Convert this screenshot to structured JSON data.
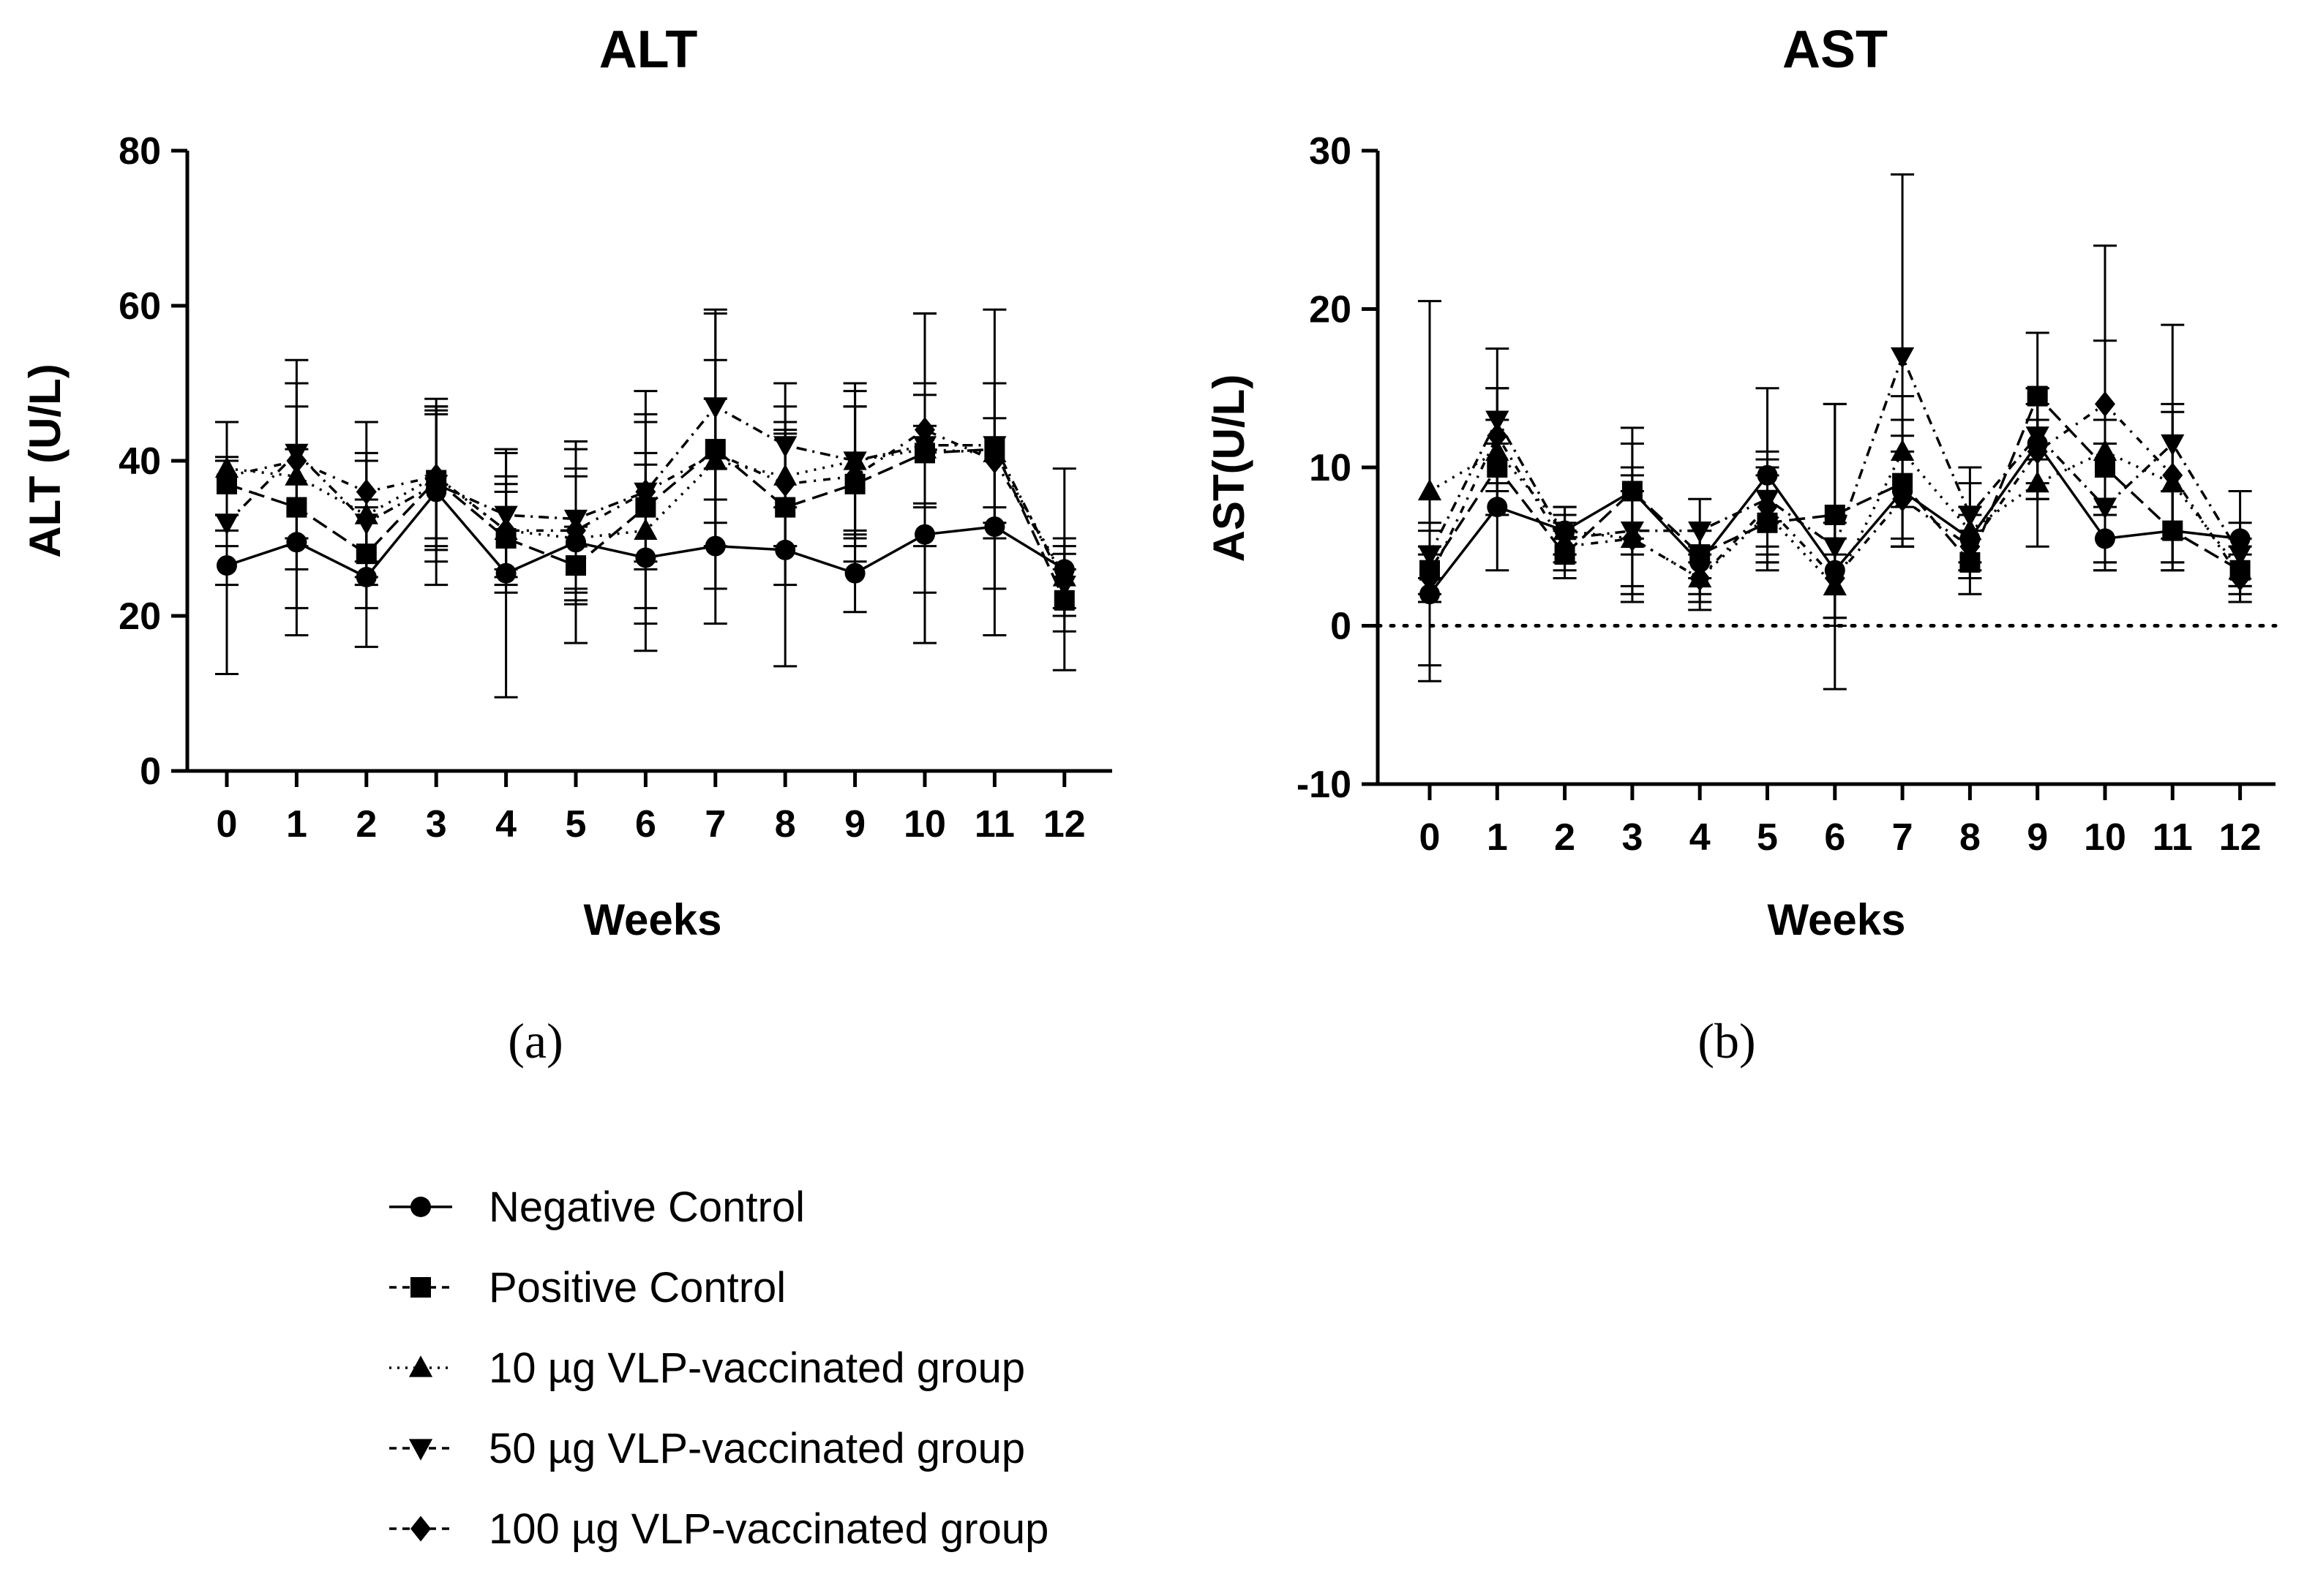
{
  "figure": {
    "panel_labels": [
      "(a)",
      "(b)"
    ],
    "legend": [
      {
        "label": "Negative Control",
        "marker": "circle",
        "dash": "solid"
      },
      {
        "label": "Positive Control",
        "marker": "square",
        "dash": "dashed"
      },
      {
        "label": "10 µg VLP-vaccinated group",
        "marker": "triangle-up",
        "dash": "dotted"
      },
      {
        "label": "50 µg VLP-vaccinated group",
        "marker": "triangle-down",
        "dash": "dashdot"
      },
      {
        "label": "100 µg VLP-vaccinated group",
        "marker": "diamond",
        "dash": "dashdot2"
      }
    ]
  },
  "chart_data": [
    {
      "id": "alt",
      "type": "line",
      "title": "ALT",
      "xlabel": "Weeks",
      "ylabel": "ALT (U/L)",
      "categories": [
        "0",
        "1",
        "2",
        "3",
        "4",
        "5",
        "6",
        "7",
        "8",
        "9",
        "10",
        "11",
        "12"
      ],
      "yticks": [
        "0",
        "20",
        "40",
        "60",
        "80"
      ],
      "ylim": [
        0,
        80
      ],
      "reference_line": null,
      "series": [
        {
          "name": "Negative Control",
          "values": [
            26.5,
            29.5,
            25,
            36,
            25.5,
            29.5,
            27.5,
            29,
            28.5,
            25.5,
            30.5,
            31.5,
            26
          ],
          "errors": [
            14,
            12,
            9,
            12,
            16,
            13,
            12,
            10,
            15,
            5,
            14,
            14,
            13
          ]
        },
        {
          "name": "Positive Control",
          "values": [
            37,
            34,
            28,
            37.5,
            30,
            26.5,
            34,
            41.5,
            34,
            37,
            41,
            41.5,
            22
          ],
          "errors": [
            8,
            13,
            7,
            9,
            7,
            5,
            15,
            18,
            10,
            10,
            18,
            18,
            4
          ]
        },
        {
          "name": "10 µg VLP-vaccinated group",
          "values": [
            39,
            38,
            33,
            38,
            31,
            30,
            31,
            40,
            38,
            40,
            41.5,
            41,
            25
          ],
          "errors": [
            6,
            12,
            8,
            9,
            5,
            8,
            10,
            8,
            9,
            9,
            7,
            9,
            4
          ]
        },
        {
          "name": "50 µg VLP-vaccinated group",
          "values": [
            32,
            41,
            32,
            37,
            33,
            32.5,
            36,
            47,
            42,
            40,
            42,
            42,
            24
          ],
          "errors": [
            8,
            12,
            8,
            10,
            8,
            9,
            10,
            12,
            8,
            10,
            8,
            8,
            4
          ]
        },
        {
          "name": "100 µg VLP-vaccinated group",
          "values": [
            38,
            40,
            36,
            38,
            31,
            31,
            36,
            41,
            37,
            38,
            44,
            40,
            25
          ],
          "errors": [
            7,
            10,
            9,
            8,
            7,
            8,
            9,
            12,
            8,
            9,
            15,
            10,
            5
          ]
        }
      ]
    },
    {
      "id": "ast",
      "type": "line",
      "title": "AST",
      "xlabel": "Weeks",
      "ylabel": "AST(U/L)",
      "categories": [
        "0",
        "1",
        "2",
        "3",
        "4",
        "5",
        "6",
        "7",
        "8",
        "9",
        "10",
        "11",
        "12"
      ],
      "yticks": [
        "-10",
        "0",
        "10",
        "20",
        "30"
      ],
      "ylim": [
        -10,
        30
      ],
      "reference_line": 0,
      "series": [
        {
          "name": "Negative Control",
          "values": [
            2,
            7.5,
            6,
            8.5,
            4,
            9.5,
            3.5,
            8.5,
            5.5,
            11.5,
            5.5,
            6,
            5.5
          ],
          "errors": [
            4.5,
            4,
            1.5,
            3,
            2,
            5.5,
            3,
            3.5,
            2,
            3.5,
            2,
            2.5,
            3
          ]
        },
        {
          "name": "Positive Control",
          "values": [
            3.5,
            10,
            4.5,
            8.5,
            4.5,
            6.5,
            7,
            9,
            4,
            14.5,
            10,
            6,
            3.5
          ],
          "errors": [
            1.5,
            3,
            1.5,
            4,
            1.5,
            3,
            7,
            4,
            2,
            4,
            3,
            2.5,
            1.5
          ]
        },
        {
          "name": "10 µg VLP-vaccinated group",
          "values": [
            8.5,
            11,
            6,
            5.5,
            3,
            7,
            2.5,
            11,
            6,
            9,
            11,
            9,
            3.5
          ],
          "errors": [
            12,
            4,
            1.5,
            4,
            2,
            3,
            2,
            3.5,
            3,
            4,
            7,
            5,
            2
          ]
        },
        {
          "name": "50 µg VLP-vaccinated group",
          "values": [
            4.5,
            13,
            5.5,
            6,
            6,
            8,
            5,
            17,
            7,
            12,
            7.5,
            11.5,
            4.5
          ],
          "errors": [
            1.5,
            4.5,
            1.5,
            4,
            2,
            3,
            9,
            11.5,
            3,
            3,
            4,
            7.5,
            2
          ]
        },
        {
          "name": "100 µg VLP-vaccinated group",
          "values": [
            3,
            12,
            5,
            5.5,
            3,
            7.5,
            3,
            8,
            5,
            11,
            14,
            9.5,
            3
          ],
          "errors": [
            1.5,
            3,
            1.5,
            3,
            1.5,
            3,
            2.5,
            3,
            2,
            3,
            10,
            4,
            1.5
          ]
        }
      ]
    }
  ]
}
